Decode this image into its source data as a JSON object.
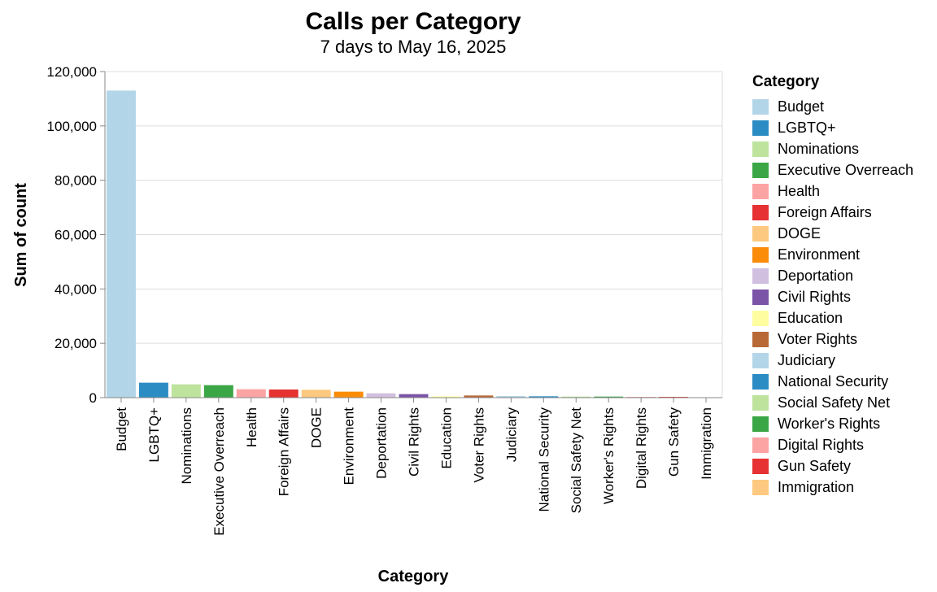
{
  "chart_data": {
    "type": "bar",
    "title": "Calls per Category",
    "subtitle": "7 days to May 16, 2025",
    "xlabel": "Category",
    "ylabel": "Sum of count",
    "ylim": [
      0,
      120000
    ],
    "yticks": [
      "0",
      "20,000",
      "40,000",
      "60,000",
      "80,000",
      "100,000",
      "120,000"
    ],
    "ytick_values": [
      0,
      20000,
      40000,
      60000,
      80000,
      100000,
      120000
    ],
    "grid": true,
    "legend_title": "Category",
    "legend_position": "right",
    "categories": [
      "Budget",
      "LGBTQ+",
      "Nominations",
      "Executive Overreach",
      "Health",
      "Foreign Affairs",
      "DOGE",
      "Environment",
      "Deportation",
      "Civil Rights",
      "Education",
      "Voter Rights",
      "Judiciary",
      "National Security",
      "Social Safety Net",
      "Worker's Rights",
      "Digital Rights",
      "Gun Safety",
      "Immigration"
    ],
    "values": [
      113000,
      5500,
      4900,
      4600,
      3100,
      3000,
      2900,
      2200,
      1600,
      1300,
      500,
      800,
      600,
      500,
      400,
      400,
      300,
      300,
      100
    ],
    "colors": [
      "#b3d5e8",
      "#2b8cc4",
      "#bde39d",
      "#3aa646",
      "#fca3a3",
      "#e63232",
      "#fdc980",
      "#fa8c0a",
      "#d1bfdf",
      "#7b54a8",
      "#fefea1",
      "#b86936",
      "#b3d5e8",
      "#2b8cc4",
      "#bde39d",
      "#3aa646",
      "#fca3a3",
      "#e63232",
      "#fdc980"
    ]
  }
}
